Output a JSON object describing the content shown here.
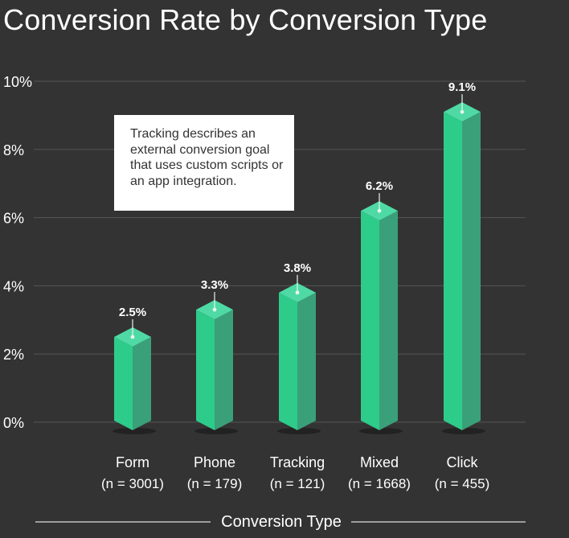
{
  "chart_data": {
    "type": "bar",
    "title": "Conversion Rate by Conversion Type",
    "xlabel": "Conversion Type",
    "ylabel": "",
    "ylim": [
      0,
      10
    ],
    "yticks": [
      "10%",
      "8%",
      "6%",
      "4%",
      "2%",
      "0%"
    ],
    "ytick_values": [
      10,
      8,
      6,
      4,
      2,
      0
    ],
    "grid": true,
    "categories": [
      "Form",
      "Phone",
      "Tracking",
      "Mixed",
      "Click"
    ],
    "sample_sizes": [
      "(n = 3001)",
      "(n = 179)",
      "(n = 121)",
      "(n = 1668)",
      "(n = 455)"
    ],
    "values": [
      2.5,
      3.3,
      3.8,
      6.2,
      9.1
    ],
    "value_labels": [
      "2.5%",
      "3.3%",
      "3.8%",
      "6.2%",
      "9.1%"
    ],
    "annotation": "Tracking describes an external conversion goal that uses custom scripts or an app integration.",
    "colors": {
      "background": "#333333",
      "bar_front": "#2ecc8a",
      "bar_side": "#3aa079",
      "bar_top": "#4fd9a5",
      "grid": "#555555",
      "text": "#ffffff"
    }
  }
}
